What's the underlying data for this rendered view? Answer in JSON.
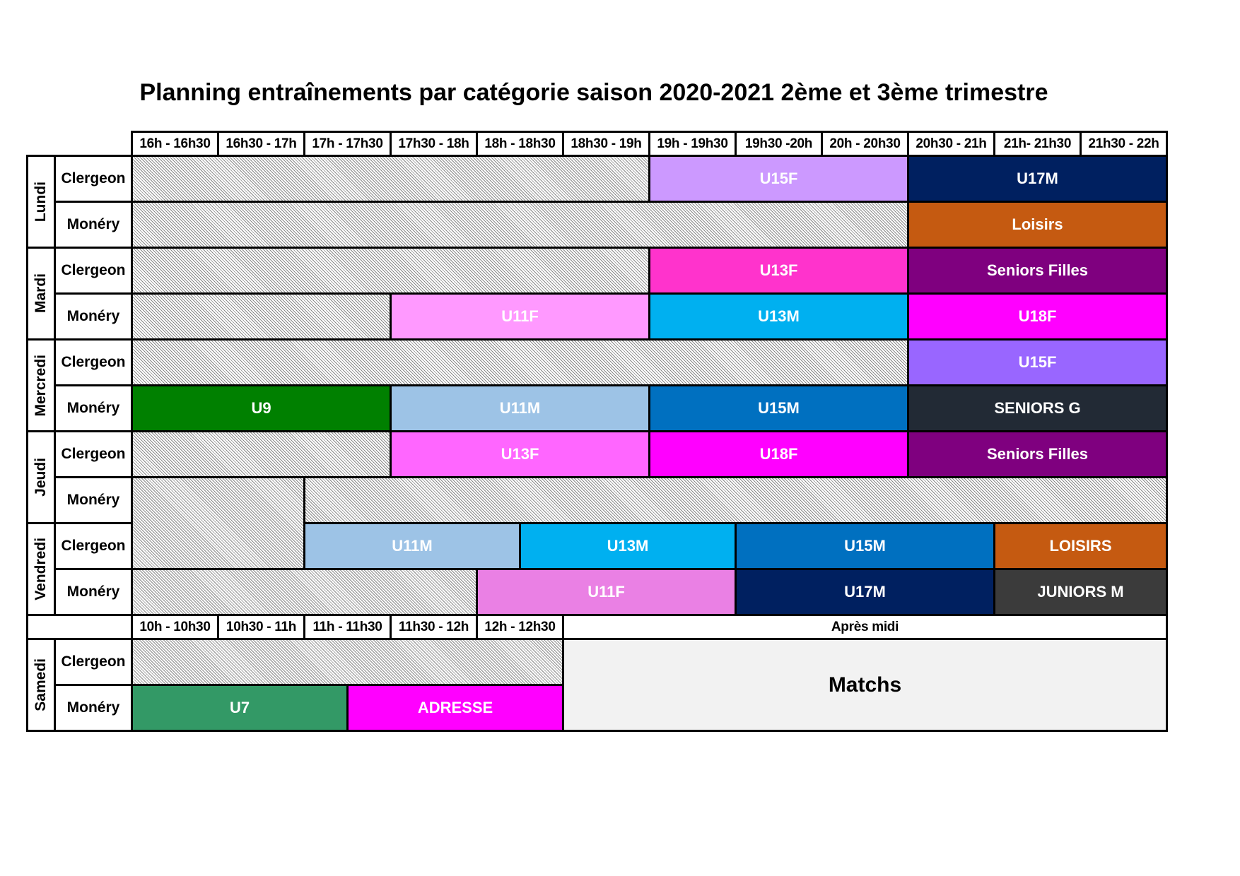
{
  "title": "Planning entraînements par catégorie saison 2020-2021 2ème et 3ème trimestre",
  "weekday_time_headers": [
    "16h - 16h30",
    "16h30 - 17h",
    "17h - 17h30",
    "17h30 - 18h",
    "18h - 18h30",
    "18h30 - 19h",
    "19h - 19h30",
    "19h30 -20h",
    "20h - 20h30",
    "20h30 - 21h",
    "21h- 21h30",
    "21h30 - 22h"
  ],
  "saturday_time_headers": [
    "10h - 10h30",
    "10h30 - 11h",
    "11h - 11h30",
    "11h30 - 12h",
    "12h - 12h30"
  ],
  "saturday_afternoon_label": "Après midi",
  "days": [
    "Lundi",
    "Mardi",
    "Mercredi",
    "Jeudi",
    "Vendredi",
    "Samedi"
  ],
  "venues": [
    "Clergeon",
    "Monéry"
  ],
  "sessions": [
    {
      "row": 0,
      "start": 6,
      "end": 9,
      "label": "U15F",
      "color": "#cc99ff",
      "text_color": "#ffffff"
    },
    {
      "row": 0,
      "start": 9,
      "end": 12,
      "label": "U17M",
      "color": "#002060",
      "text_color": "#ffffff"
    },
    {
      "row": 1,
      "start": 9,
      "end": 12,
      "label": "Loisirs",
      "color": "#c55a11",
      "text_color": "#ffffff"
    },
    {
      "row": 2,
      "start": 6,
      "end": 9,
      "label": "U13F",
      "color": "#ff33cc",
      "text_color": "#ffffff"
    },
    {
      "row": 2,
      "start": 9,
      "end": 12,
      "label": "Seniors Filles",
      "color": "#7f007f",
      "text_color": "#ffffff"
    },
    {
      "row": 3,
      "start": 3,
      "end": 6,
      "label": "U11F",
      "color": "#ff99ff",
      "text_color": "#ffffff"
    },
    {
      "row": 3,
      "start": 6,
      "end": 9,
      "label": "U13M",
      "color": "#00b0f0",
      "text_color": "#ffffff"
    },
    {
      "row": 3,
      "start": 9,
      "end": 12,
      "label": "U18F",
      "color": "#ff00ff",
      "text_color": "#ffffff"
    },
    {
      "row": 4,
      "start": 9,
      "end": 12,
      "label": "U15F",
      "color": "#9966ff",
      "text_color": "#ffffff"
    },
    {
      "row": 5,
      "start": 0,
      "end": 3,
      "label": "U9",
      "color": "#008000",
      "text_color": "#ffffff"
    },
    {
      "row": 5,
      "start": 3,
      "end": 6,
      "label": "U11M",
      "color": "#9dc3e6",
      "text_color": "#ffffff"
    },
    {
      "row": 5,
      "start": 6,
      "end": 9,
      "label": "U15M",
      "color": "#0070c0",
      "text_color": "#ffffff"
    },
    {
      "row": 5,
      "start": 9,
      "end": 12,
      "label": "SENIORS G",
      "color": "#222a35",
      "text_color": "#ffffff"
    },
    {
      "row": 6,
      "start": 3,
      "end": 6,
      "label": "U13F",
      "color": "#ff66ff",
      "text_color": "#ffffff"
    },
    {
      "row": 6,
      "start": 6,
      "end": 9,
      "label": "U18F",
      "color": "#ff00ff",
      "text_color": "#ffffff"
    },
    {
      "row": 6,
      "start": 9,
      "end": 12,
      "label": "Seniors Filles",
      "color": "#7f007f",
      "text_color": "#ffffff"
    },
    {
      "row": 8,
      "start": 2,
      "end": 4.5,
      "label": "U11M",
      "color": "#9dc3e6",
      "text_color": "#ffffff"
    },
    {
      "row": 8,
      "start": 4.5,
      "end": 7,
      "label": "U13M",
      "color": "#00b0f0",
      "text_color": "#ffffff"
    },
    {
      "row": 8,
      "start": 7,
      "end": 10,
      "label": "U15M",
      "color": "#0070c0",
      "text_color": "#ffffff"
    },
    {
      "row": 8,
      "start": 10,
      "end": 12,
      "label": "LOISIRS",
      "color": "#c55a11",
      "text_color": "#ffffff"
    },
    {
      "row": 9,
      "start": 4,
      "end": 7,
      "label": "U11F",
      "color": "#ea80e4",
      "text_color": "#ffffff"
    },
    {
      "row": 9,
      "start": 7,
      "end": 10,
      "label": "U17M",
      "color": "#002060",
      "text_color": "#ffffff"
    },
    {
      "row": 9,
      "start": 10,
      "end": 12,
      "label": "JUNIORS M",
      "color": "#3b3b3b",
      "text_color": "#ffffff"
    }
  ],
  "saturday_sessions": [
    {
      "row": 1,
      "start": 0,
      "end": 2.5,
      "label": "U7",
      "color": "#339966",
      "text_color": "#ffffff"
    },
    {
      "row": 1,
      "start": 2.5,
      "end": 5,
      "label": "ADRESSE",
      "color": "#ff00ff",
      "text_color": "#ffffff"
    }
  ],
  "saturday_matchs_label": "Matchs"
}
